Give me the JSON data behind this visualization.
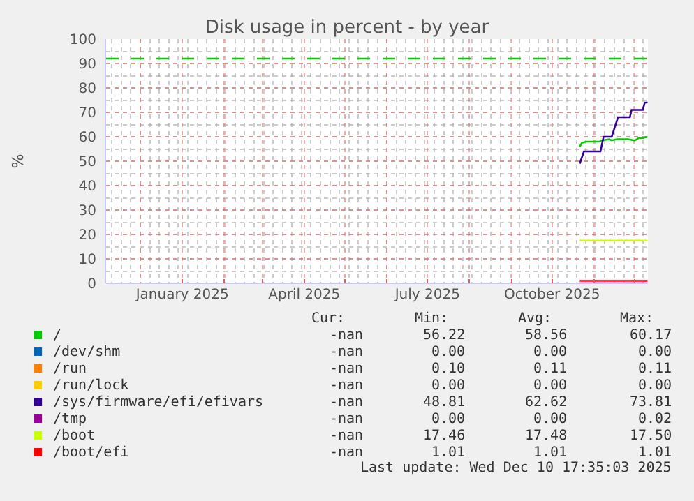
{
  "chart_data": {
    "type": "line",
    "title": "Disk usage in percent - by year",
    "ylabel": "%",
    "xlim": [
      "2024-11-05T17:35",
      "2025-12-10T17:35"
    ],
    "xticks": [
      {
        "value": "2024-12-01",
        "label": null
      },
      {
        "value": "2025-01-01",
        "label": "January 2025"
      },
      {
        "value": "2025-02-01",
        "label": null
      },
      {
        "value": "2025-03-01",
        "label": null
      },
      {
        "value": "2025-04-01",
        "label": "April 2025"
      },
      {
        "value": "2025-05-01",
        "label": null
      },
      {
        "value": "2025-06-01",
        "label": null
      },
      {
        "value": "2025-07-01",
        "label": "July 2025"
      },
      {
        "value": "2025-08-01",
        "label": null
      },
      {
        "value": "2025-09-01",
        "label": null
      },
      {
        "value": "2025-10-01",
        "label": "October 2025"
      },
      {
        "value": "2025-11-01",
        "label": null
      },
      {
        "value": "2025-12-01",
        "label": null
      }
    ],
    "ylim": [
      0,
      100
    ],
    "yticks": [
      0,
      10,
      20,
      30,
      40,
      50,
      60,
      70,
      80,
      90,
      100
    ],
    "grid": true,
    "legend": "bottom",
    "marker": "none",
    "line_style": "solid",
    "ref_lines": [
      {
        "axis": "y",
        "value": 92,
        "color": "#00cc00",
        "line_style": "dashed"
      }
    ],
    "series": [
      {
        "name": "/",
        "color": "#00cc00",
        "x": [
          "2025-10-21T10:00",
          "2025-10-23",
          "2025-10-26",
          "2025-11-05",
          "2025-11-07",
          "2025-11-12",
          "2025-11-14",
          "2025-11-18",
          "2025-11-26",
          "2025-12-01",
          "2025-12-04",
          "2025-12-07",
          "2025-12-10T12:00"
        ],
        "values": [
          56,
          57.5,
          58,
          58,
          58.5,
          59,
          58.5,
          59,
          59,
          58.5,
          59.5,
          59.5,
          60
        ]
      },
      {
        "name": "/dev/shm",
        "color": "#0066b3",
        "values": [
          null
        ]
      },
      {
        "name": "/run",
        "color": "#ff8000",
        "values": [
          null
        ]
      },
      {
        "name": "/run/lock",
        "color": "#ffcc00",
        "values": [
          null
        ]
      },
      {
        "name": "/sys/firmware/efi/efivars",
        "color": "#330099",
        "x": [
          "2025-10-21T10:00",
          "2025-10-24T12:00",
          "2025-11-05T16:00",
          "2025-11-08",
          "2025-11-14",
          "2025-11-18T16:00",
          "2025-11-27T10:00",
          "2025-11-28T16:00",
          "2025-12-07",
          "2025-12-08T10:00",
          "2025-12-10T12:00"
        ],
        "values": [
          49,
          54,
          54,
          60,
          60,
          68,
          68,
          71,
          71,
          74,
          74
        ]
      },
      {
        "name": "/tmp",
        "color": "#990099",
        "x": [
          "2025-10-21T10:00",
          "2025-12-10T12:00"
        ],
        "values": [
          0,
          0
        ]
      },
      {
        "name": "/boot",
        "color": "#ccff00",
        "x": [
          "2025-10-21T10:00",
          "2025-12-10T12:00"
        ],
        "values": [
          17.5,
          17.5
        ]
      },
      {
        "name": "/boot/efi",
        "color": "#ff0000",
        "x": [
          "2025-10-21T10:00",
          "2025-12-10T12:00"
        ],
        "values": [
          1,
          1
        ]
      }
    ],
    "annotations": [
      "Cur:",
      "Min:",
      "Avg:",
      "Max:",
      "-nan",
      "56.22",
      "58.56",
      "60.17",
      "-nan",
      "0.00",
      "0.00",
      "0.00",
      "-nan",
      "0.10",
      "0.11",
      "0.11",
      "-nan",
      "0.00",
      "0.00",
      "0.00",
      "-nan",
      "48.81",
      "62.62",
      "73.81",
      "-nan",
      "0.00",
      "0.00",
      "0.02",
      "-nan",
      "17.46",
      "17.48",
      "17.50",
      "-nan",
      "1.01",
      "1.01",
      "1.01",
      "Last update: Wed Dec 10 17:35:03 2025"
    ]
  }
}
